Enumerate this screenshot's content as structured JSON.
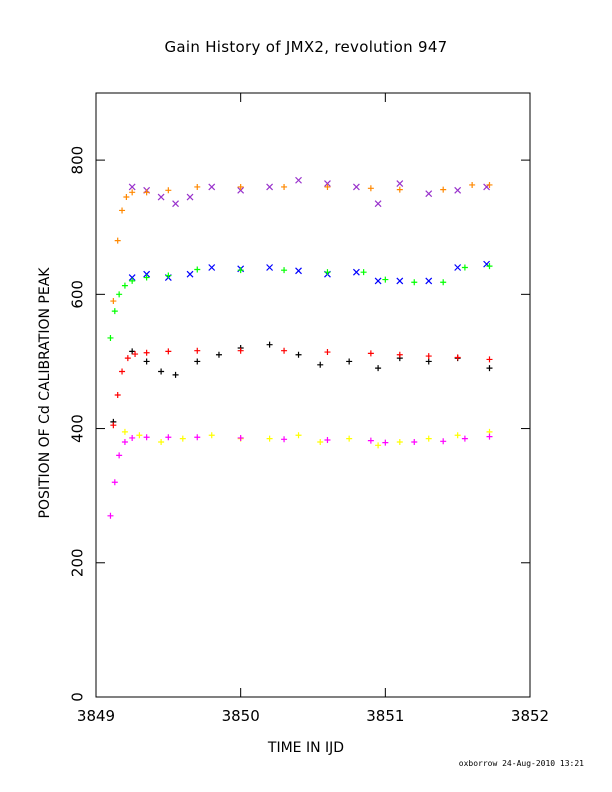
{
  "chart_data": {
    "type": "scatter",
    "title": "Gain History of JMX2, revolution 947",
    "xlabel": "TIME IN IJD",
    "ylabel": "POSITION OF Cd CALIBRATION PEAK",
    "xlim": [
      3849,
      3852
    ],
    "ylim": [
      0,
      900
    ],
    "xticks": [
      3849,
      3850,
      3851,
      3852
    ],
    "yticks": [
      0,
      200,
      400,
      600,
      800
    ],
    "grid": false,
    "legend": "none",
    "series": [
      {
        "marker": "x",
        "color": "#9933cc",
        "x": [
          3849.25,
          3849.35,
          3849.45,
          3849.55,
          3849.65,
          3849.8,
          3850.0,
          3850.2,
          3850.4,
          3850.6,
          3850.8,
          3850.95,
          3851.1,
          3851.3,
          3851.5,
          3851.7
        ],
        "y": [
          760,
          755,
          745,
          735,
          745,
          760,
          755,
          760,
          770,
          765,
          760,
          735,
          765,
          750,
          755,
          760
        ]
      },
      {
        "marker": "+",
        "color": "#ff8800",
        "x": [
          3849.12,
          3849.15,
          3849.18,
          3849.21,
          3849.25,
          3849.35,
          3849.5,
          3849.7,
          3850.0,
          3850.3,
          3850.6,
          3850.9,
          3851.1,
          3851.4,
          3851.6,
          3851.72
        ],
        "y": [
          590,
          680,
          725,
          745,
          752,
          752,
          755,
          760,
          760,
          760,
          760,
          758,
          756,
          756,
          763,
          763
        ]
      },
      {
        "marker": "x",
        "color": "#0000ff",
        "x": [
          3849.25,
          3849.35,
          3849.5,
          3849.65,
          3849.8,
          3850.0,
          3850.2,
          3850.4,
          3850.6,
          3850.8,
          3850.95,
          3851.1,
          3851.3,
          3851.5,
          3851.7
        ],
        "y": [
          625,
          630,
          625,
          630,
          640,
          638,
          640,
          635,
          630,
          633,
          620,
          620,
          620,
          640,
          645
        ]
      },
      {
        "marker": "+",
        "color": "#00ff00",
        "x": [
          3849.1,
          3849.13,
          3849.16,
          3849.2,
          3849.25,
          3849.35,
          3849.5,
          3849.7,
          3850.0,
          3850.3,
          3850.6,
          3850.85,
          3851.0,
          3851.2,
          3851.4,
          3851.55,
          3851.72
        ],
        "y": [
          535,
          575,
          600,
          613,
          620,
          625,
          628,
          637,
          636,
          636,
          633,
          633,
          622,
          618,
          618,
          640,
          642
        ]
      },
      {
        "marker": "+",
        "color": "#000000",
        "x": [
          3849.12,
          3849.25,
          3849.35,
          3849.45,
          3849.55,
          3849.7,
          3849.85,
          3850.0,
          3850.2,
          3850.4,
          3850.55,
          3850.75,
          3850.95,
          3851.1,
          3851.3,
          3851.5,
          3851.72
        ],
        "y": [
          410,
          515,
          500,
          485,
          480,
          500,
          510,
          520,
          525,
          510,
          495,
          500,
          490,
          505,
          500,
          505,
          490
        ]
      },
      {
        "marker": "+",
        "color": "#ff0000",
        "x": [
          3849.12,
          3849.15,
          3849.18,
          3849.22,
          3849.27,
          3849.35,
          3849.5,
          3849.7,
          3850.0,
          3850.3,
          3850.6,
          3850.9,
          3851.1,
          3851.3,
          3851.5,
          3851.72
        ],
        "y": [
          405,
          450,
          485,
          505,
          511,
          513,
          515,
          516,
          516,
          516,
          514,
          512,
          510,
          508,
          506,
          503
        ]
      },
      {
        "marker": "+",
        "color": "#ffff00",
        "x": [
          3849.2,
          3849.3,
          3849.45,
          3849.6,
          3849.8,
          3850.0,
          3850.2,
          3850.4,
          3850.55,
          3850.75,
          3850.95,
          3851.1,
          3851.3,
          3851.5,
          3851.72
        ],
        "y": [
          395,
          390,
          380,
          385,
          390,
          385,
          385,
          390,
          380,
          385,
          375,
          380,
          385,
          390,
          395
        ]
      },
      {
        "marker": "+",
        "color": "#ff00ff",
        "x": [
          3849.1,
          3849.13,
          3849.16,
          3849.2,
          3849.25,
          3849.35,
          3849.5,
          3849.7,
          3850.0,
          3850.3,
          3850.6,
          3850.9,
          3851.0,
          3851.2,
          3851.4,
          3851.55,
          3851.72
        ],
        "y": [
          270,
          320,
          360,
          380,
          386,
          387,
          387,
          387,
          386,
          384,
          383,
          382,
          379,
          380,
          381,
          385,
          388
        ]
      }
    ]
  },
  "footer_text": "oxborrow 24-Aug-2010 13:21"
}
